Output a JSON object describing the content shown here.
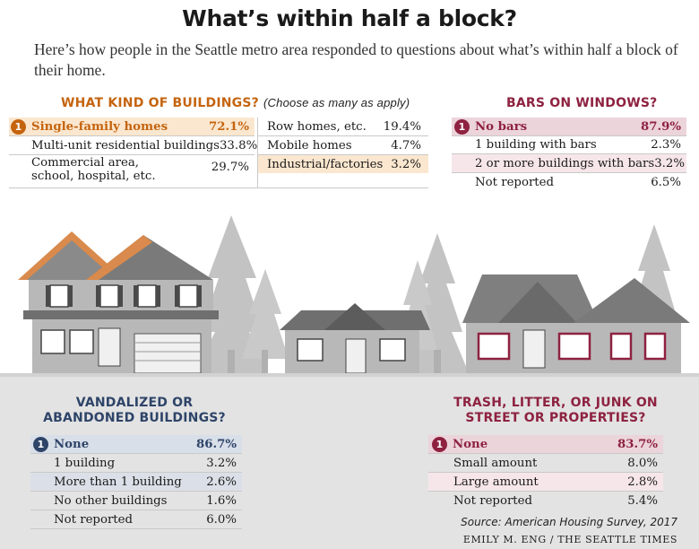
{
  "title": "What’s within half a block?",
  "intro": "Here’s how people in the Seattle metro area responded to questions about what’s within half a block of their home.",
  "colors": {
    "orange": "#c5640f",
    "orange_tint": "#fbe7cf",
    "navy": "#2e4468",
    "navy_tint": "#d8dfe9",
    "maroon": "#8e2240",
    "maroon_tint": "#ecd4db",
    "pink_tint": "#f6e6ea"
  },
  "chart_data": [
    {
      "type": "table",
      "title": "WHAT KIND OF BUILDINGS?",
      "subtitle": "(Choose as many as apply)",
      "categories": [
        "Single-family homes",
        "Multi-unit residential buildings",
        "Commercial area, school, hospital, etc.",
        "Row homes, etc.",
        "Mobile homes",
        "Industrial/factories"
      ],
      "values": [
        72.1,
        33.8,
        29.7,
        19.4,
        4.7,
        3.2
      ],
      "display": [
        "72.1%",
        "33.8%",
        "29.7%",
        "19.4%",
        "4.7%",
        "3.2%"
      ],
      "label_lines": [
        [
          "Single-family homes"
        ],
        [
          "Multi-unit residential buildings"
        ],
        [
          "Commercial area,",
          "school, hospital, etc."
        ],
        [
          "Row homes, etc."
        ],
        [
          "Mobile homes"
        ],
        [
          "Industrial/factories"
        ]
      ],
      "rank_badge": "1"
    },
    {
      "type": "table",
      "title": "BARS ON WINDOWS?",
      "categories": [
        "No bars",
        "1 building with bars",
        "2 or more buildings with bars",
        "Not reported"
      ],
      "values": [
        87.9,
        2.3,
        3.2,
        6.5
      ],
      "display": [
        "87.9%",
        "2.3%",
        "3.2%",
        "6.5%"
      ],
      "rank_badge": "1"
    },
    {
      "type": "table",
      "title": "VANDALIZED OR ABANDONED BUILDINGS?",
      "title_lines": [
        "VANDALIZED OR",
        "ABANDONED BUILDINGS?"
      ],
      "categories": [
        "None",
        "1 building",
        "More than 1 building",
        "No other buildings",
        "Not reported"
      ],
      "values": [
        86.7,
        3.2,
        2.6,
        1.6,
        6.0
      ],
      "display": [
        "86.7%",
        "3.2%",
        "2.6%",
        "1.6%",
        "6.0%"
      ],
      "rank_badge": "1"
    },
    {
      "type": "table",
      "title": "TRASH, LITTER, OR JUNK ON STREET OR PROPERTIES?",
      "title_lines": [
        "TRASH, LITTER, OR JUNK ON",
        "STREET OR PROPERTIES?"
      ],
      "categories": [
        "None",
        "Small amount",
        "Large amount",
        "Not reported"
      ],
      "values": [
        83.7,
        8.0,
        2.8,
        5.4
      ],
      "display": [
        "83.7%",
        "8.0%",
        "2.8%",
        "5.4%"
      ],
      "rank_badge": "1"
    }
  ],
  "source": "Source: American Housing Survey, 2017",
  "credit": "EMILY M. ENG / THE SEATTLE TIMES"
}
